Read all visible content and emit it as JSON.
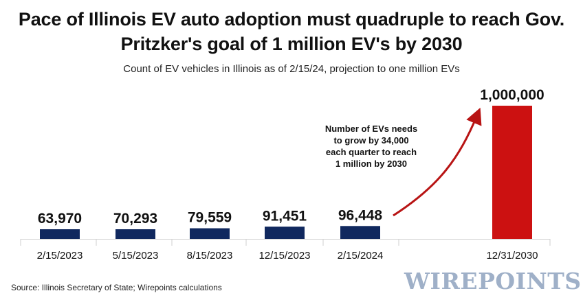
{
  "chart_data": {
    "type": "bar",
    "title": "Pace of Illinois EV auto adoption must quadruple to reach Gov. Pritzker's goal of 1 million EV's by 2030",
    "subtitle": "Count of EV vehicles in Illinois as of 2/15/24, projection to one million EVs",
    "categories": [
      "2/15/2023",
      "5/15/2023",
      "8/15/2023",
      "12/15/2023",
      "2/15/2024",
      "12/31/2030"
    ],
    "values": [
      63970,
      70293,
      79559,
      91451,
      96448,
      1000000
    ],
    "value_labels": [
      "63,970",
      "70,293",
      "79,559",
      "91,451",
      "96,448",
      "1,000,000"
    ],
    "bar_colors": [
      "#10285e",
      "#10285e",
      "#10285e",
      "#10285e",
      "#10285e",
      "#cc1111"
    ],
    "ylim": [
      0,
      1000000
    ],
    "grid": false,
    "legend": "none",
    "annotation": {
      "lines": [
        "Number of EVs needs",
        "to grow by 34,000",
        "each quarter to reach",
        "1 million by 2030"
      ],
      "arrow_color": "#b81414"
    }
  },
  "source": "Source: Illinois Secretary of State; Wirepoints calculations",
  "logo": "WIREPOINTS"
}
